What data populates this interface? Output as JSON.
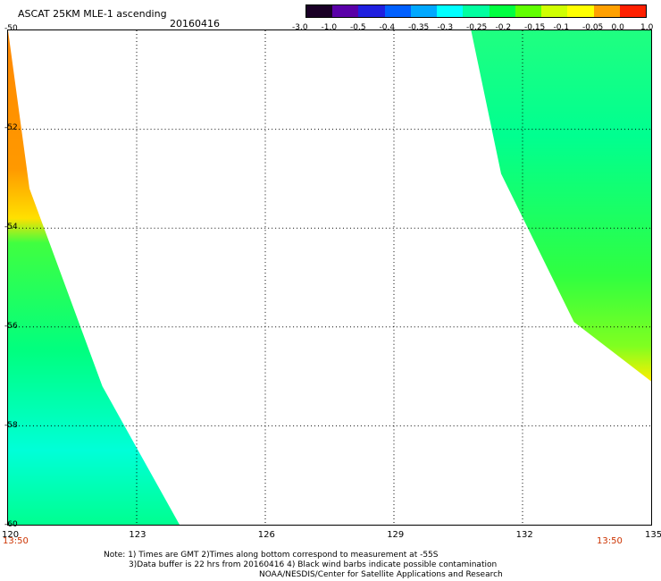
{
  "header": {
    "title": "ASCAT 25KM MLE-1 ascending",
    "date": "20160416"
  },
  "colors": {
    "time_label": "#cc3300",
    "grid": "#000000"
  },
  "colorbar": {
    "ticks": [
      "-3.0",
      "-1.0",
      "-0.5",
      "-0.4",
      "-0.35",
      "-0.3",
      "-0.25",
      "-0.2",
      "-0.15",
      "-0.1",
      "-0.05",
      "0.0",
      "1.0"
    ],
    "colors": [
      "#1a0026",
      "#5a00a8",
      "#2020e0",
      "#0060ff",
      "#00a8ff",
      "#00ffff",
      "#00ffa0",
      "#00ff40",
      "#60ff00",
      "#d0ff00",
      "#ffff00",
      "#ffa000",
      "#ff2000"
    ]
  },
  "map": {
    "lon_labels": [
      "120",
      "123",
      "126",
      "129",
      "132",
      "135"
    ],
    "lat_labels": [
      "-50",
      "-52",
      "-54",
      "-56",
      "-58",
      "-60"
    ],
    "time_left": "13:50",
    "time_right": "13:50",
    "lon_range": [
      120,
      135
    ],
    "lat_range": [
      -60,
      -50
    ],
    "swaths": [
      {
        "name": "west",
        "poly_lonlat": [
          [
            120,
            -50
          ],
          [
            120.5,
            -53.2
          ],
          [
            122.2,
            -57.2
          ],
          [
            124,
            -60
          ],
          [
            120,
            -60
          ]
        ]
      },
      {
        "name": "east",
        "poly_lonlat": [
          [
            130.8,
            -50
          ],
          [
            135,
            -50
          ],
          [
            135,
            -57.1
          ],
          [
            133.2,
            -55.9
          ],
          [
            131.5,
            -52.9
          ]
        ]
      }
    ]
  },
  "notes": {
    "line1": "Note: 1) Times are GMT 2)Times along bottom correspond to measurement at -55S",
    "line2": "3)Data buffer is 22 hrs from 20160416 4) Black wind barbs indicate possible contamination",
    "line3": "NOAA/NESDIS/Center for Satellite Applications and Research"
  }
}
